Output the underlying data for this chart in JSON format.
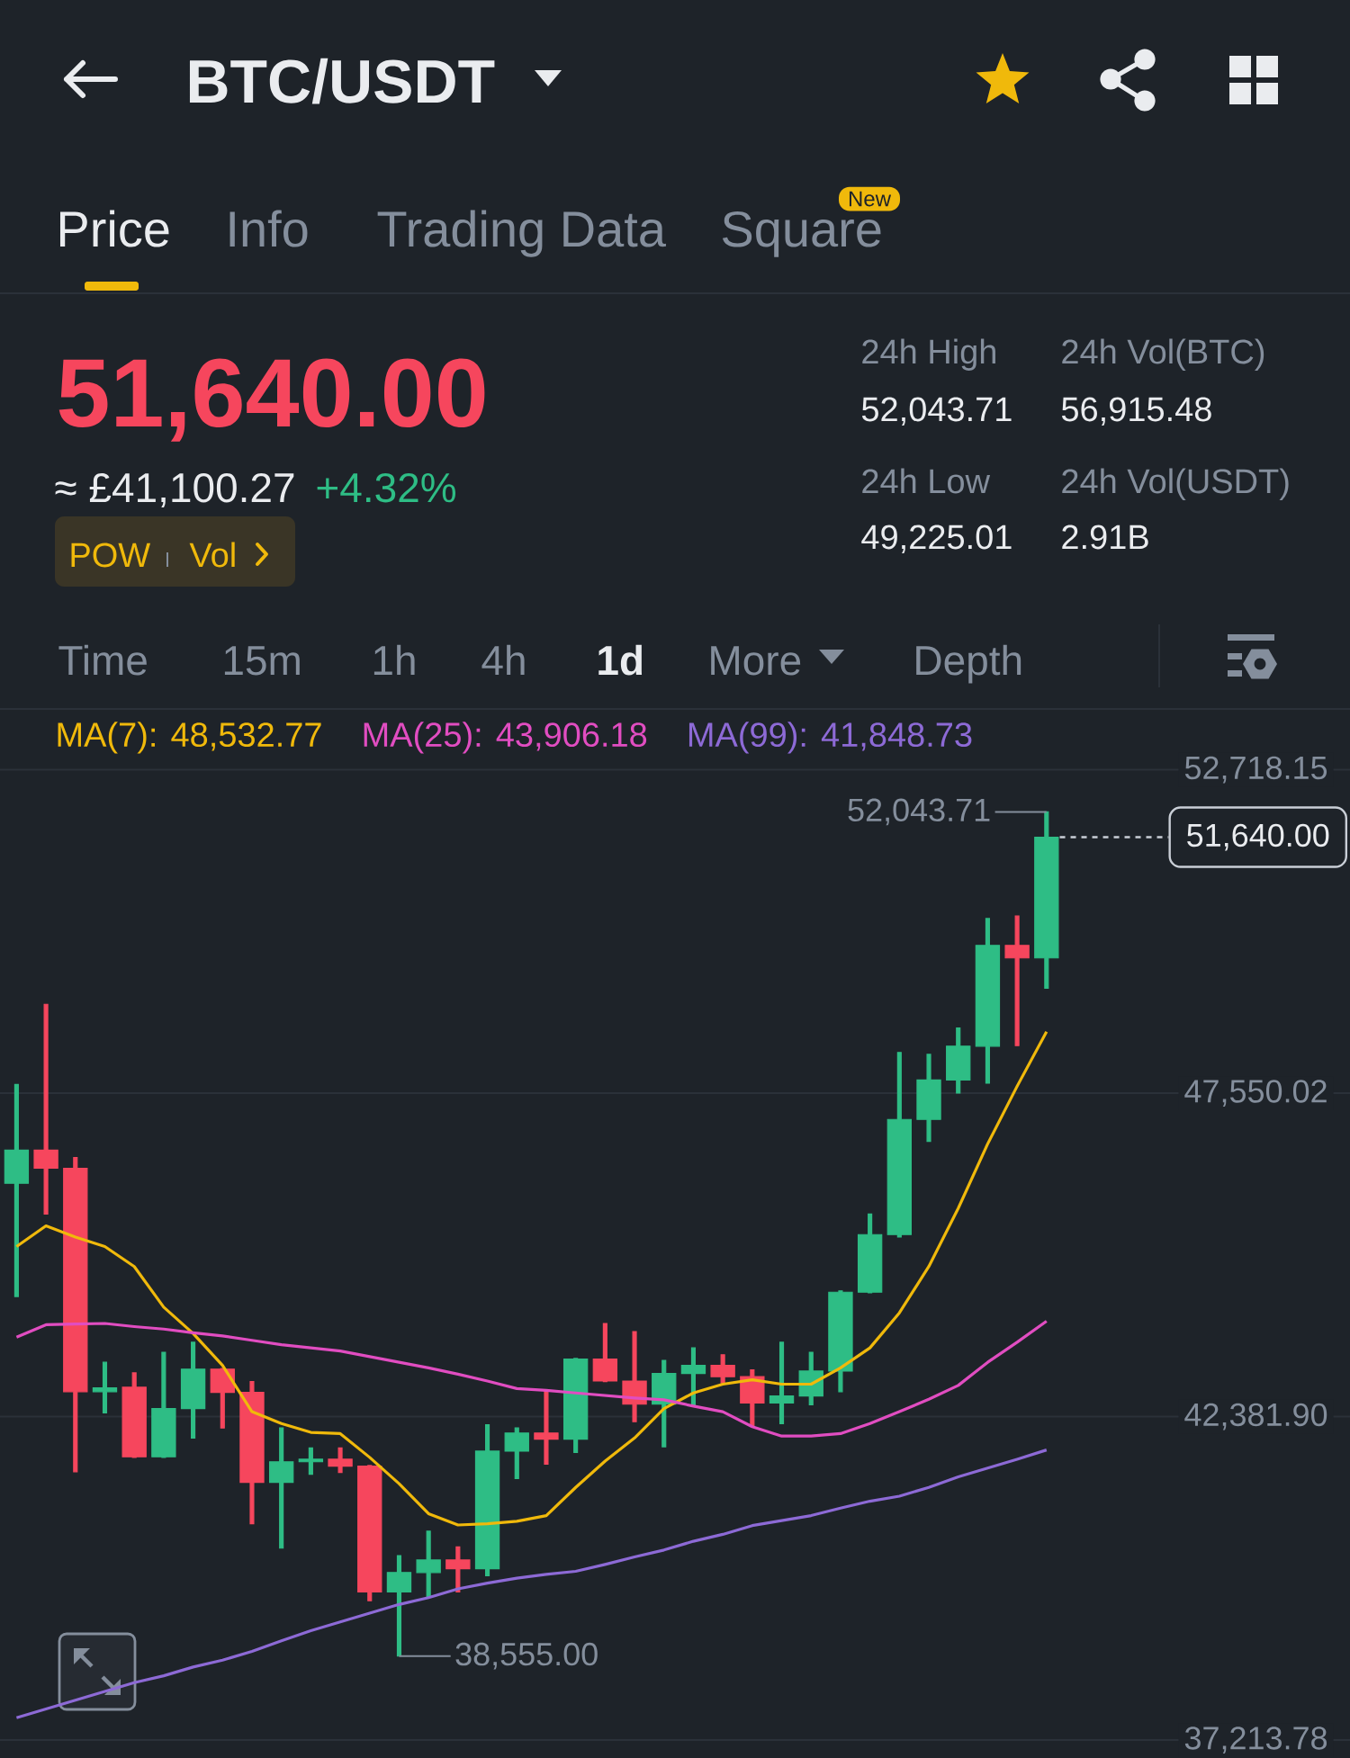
{
  "chart_data": {
    "type": "candlestick",
    "title": "BTC/USDT",
    "categories": [
      null,
      null,
      null,
      null,
      null,
      null,
      null,
      null,
      null,
      null,
      null,
      null,
      null,
      null,
      null,
      null,
      null,
      null,
      null,
      null,
      null,
      null,
      null,
      null,
      null,
      null,
      null,
      null,
      null,
      null,
      null,
      null,
      null,
      null,
      null,
      null
    ],
    "ohlc": [
      [
        46110,
        47690,
        44300,
        46640
      ],
      [
        46640,
        48970,
        45620,
        46350
      ],
      [
        46350,
        46520,
        41500,
        42780
      ],
      [
        42780,
        43250,
        42440,
        42840
      ],
      [
        42850,
        43080,
        41730,
        41740
      ],
      [
        41740,
        43410,
        41730,
        42510
      ],
      [
        42510,
        43570,
        42040,
        43140
      ],
      [
        43140,
        43150,
        42200,
        42770
      ],
      [
        42770,
        42940,
        40670,
        41330
      ],
      [
        41330,
        42200,
        40280,
        41660
      ],
      [
        41660,
        41880,
        41460,
        41700
      ],
      [
        41700,
        41880,
        41490,
        41590
      ],
      [
        41590,
        41600,
        39440,
        39580
      ],
      [
        39580,
        40160,
        38555,
        39890
      ],
      [
        39890,
        40550,
        39500,
        40090
      ],
      [
        40090,
        40300,
        39580,
        39950
      ],
      [
        39950,
        42250,
        39840,
        41830
      ],
      [
        41830,
        42200,
        41390,
        42120
      ],
      [
        42120,
        42810,
        41620,
        42020
      ],
      [
        42020,
        43310,
        41810,
        43300
      ],
      [
        43300,
        43870,
        42940,
        42950
      ],
      [
        42950,
        43740,
        42300,
        42580
      ],
      [
        42580,
        43280,
        41900,
        43070
      ],
      [
        43070,
        43480,
        42550,
        43200
      ],
      [
        43200,
        43370,
        42920,
        43020
      ],
      [
        43020,
        43130,
        42230,
        42600
      ],
      [
        42600,
        43570,
        42270,
        42710
      ],
      [
        42710,
        43410,
        42570,
        43110
      ],
      [
        43110,
        44390,
        42780,
        44370
      ],
      [
        44370,
        45620,
        44360,
        45290
      ],
      [
        45290,
        48200,
        45250,
        47130
      ],
      [
        47130,
        48170,
        46780,
        47760
      ],
      [
        47760,
        48590,
        47550,
        48300
      ],
      [
        48300,
        50340,
        47710,
        49910
      ],
      [
        49910,
        50380,
        48310,
        49710
      ],
      [
        49710,
        52043.71,
        49225,
        51640
      ]
    ],
    "series": [
      {
        "name": "MA(7): 48,532.77",
        "type": "line",
        "color": "#f0b90b",
        "values": [
          45100,
          45430,
          45250,
          45100,
          44780,
          44130,
          43710,
          43200,
          42460,
          42270,
          42130,
          42110,
          41730,
          41310,
          40830,
          40650,
          40670,
          40710,
          40800,
          41250,
          41670,
          42040,
          42510,
          42760,
          42900,
          42970,
          42900,
          42900,
          43160,
          43480,
          44040,
          44780,
          45710,
          46740,
          47660,
          48532.77
        ]
      },
      {
        "name": "MA(25): 43,906.18",
        "type": "line",
        "color": "#e14dc1",
        "values": [
          43650,
          43850,
          43860,
          43870,
          43820,
          43780,
          43720,
          43670,
          43600,
          43530,
          43480,
          43430,
          43340,
          43250,
          43160,
          43060,
          42950,
          42830,
          42800,
          42760,
          42720,
          42680,
          42650,
          42550,
          42460,
          42220,
          42070,
          42070,
          42110,
          42270,
          42460,
          42660,
          42880,
          43250,
          43570,
          43906.18
        ]
      },
      {
        "name": "MA(99): 41,848.73",
        "type": "line",
        "color": "#8d6ad6",
        "values": [
          37570,
          37710,
          37850,
          37990,
          38130,
          38240,
          38380,
          38490,
          38630,
          38800,
          38960,
          39100,
          39240,
          39380,
          39490,
          39630,
          39720,
          39800,
          39860,
          39910,
          40020,
          40140,
          40250,
          40390,
          40500,
          40640,
          40720,
          40800,
          40920,
          41030,
          41110,
          41250,
          41420,
          41560,
          41700,
          41848.73
        ]
      }
    ],
    "ylim": [
      37213.78,
      53660
    ],
    "yticks": [
      {
        "value": 52718.15,
        "label": "52,718.15"
      },
      {
        "value": 47550.02,
        "label": "47,550.02"
      },
      {
        "value": 42381.9,
        "label": "42,381.90"
      },
      {
        "value": 37213.78,
        "label": "37,213.78"
      }
    ],
    "grid": "y",
    "legend": "top",
    "tick_labels": "y",
    "ref_lines": [
      {
        "axis": "y",
        "value": 51640,
        "label": "51,640.00",
        "line_style": "dashed",
        "color": "#c9ced6"
      }
    ],
    "annotations": [
      "Price",
      "Info",
      "Trading Data",
      "Square",
      "New",
      "51,640.00",
      "≈ £41,100.27",
      "+4.32%",
      "POW",
      "Vol",
      "24h High",
      "52,043.71",
      "24h Vol(BTC)",
      "56,915.48",
      "24h Low",
      "49,225.01",
      "24h Vol(USDT)",
      "2.91B",
      "Time",
      "15m",
      "1h",
      "4h",
      "1d",
      "More",
      "Depth",
      "52,043.71",
      "38,555.00"
    ]
  }
}
